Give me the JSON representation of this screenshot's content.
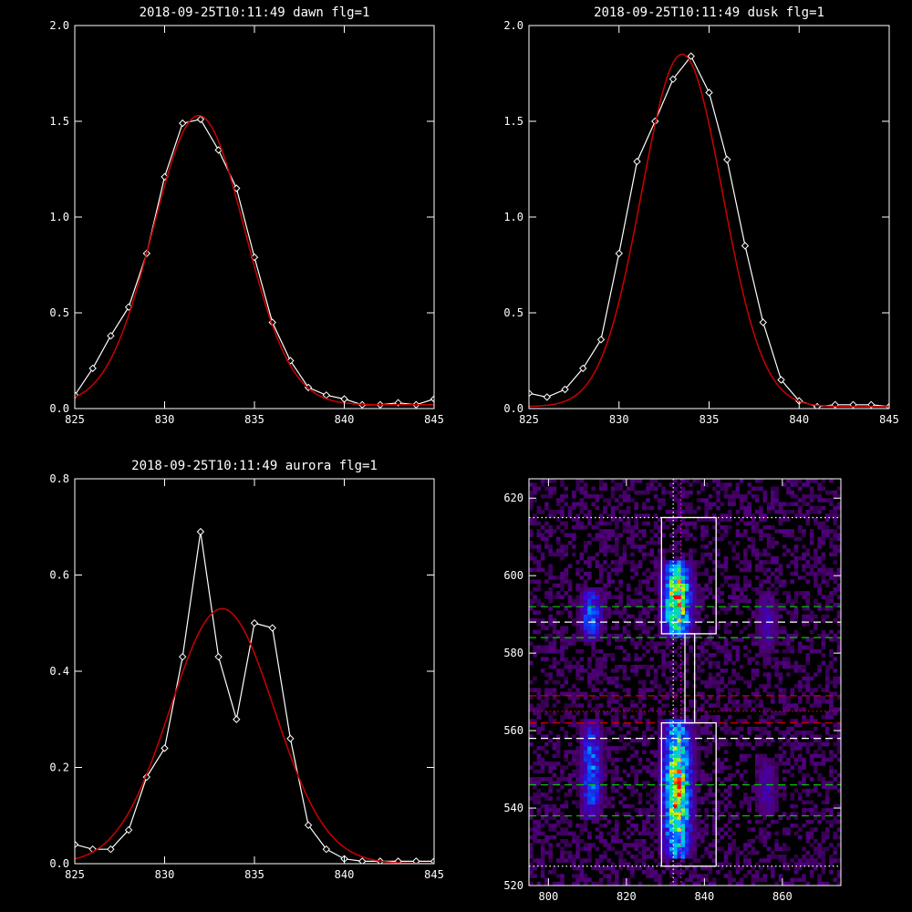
{
  "chart_data": [
    {
      "type": "line",
      "title": "2018-09-25T10:11:49 dawn flg=1",
      "xlim": [
        825,
        845
      ],
      "ylim": [
        0,
        2.0
      ],
      "xticks": [
        825,
        830,
        835,
        840,
        845
      ],
      "yticks": [
        "0.0",
        "0.5",
        "1.0",
        "1.5",
        "2.0"
      ],
      "grid": false,
      "series": [
        {
          "color": "#ffffff",
          "marker": "diamond",
          "x": [
            825,
            826,
            827,
            828,
            829,
            830,
            831,
            832,
            833,
            834,
            835,
            836,
            837,
            838,
            839,
            840,
            841,
            842,
            843,
            844,
            845
          ],
          "y": [
            0.07,
            0.21,
            0.38,
            0.53,
            0.81,
            1.21,
            1.49,
            1.51,
            1.35,
            1.15,
            0.79,
            0.45,
            0.25,
            0.11,
            0.07,
            0.05,
            0.02,
            0.02,
            0.03,
            0.02,
            0.05
          ]
        },
        {
          "color": "#cc0000",
          "fit": {
            "amplitude": 1.51,
            "center": 831.9,
            "sigma": 2.55,
            "offset": 0.02
          }
        }
      ]
    },
    {
      "type": "line",
      "title": "2018-09-25T10:11:49 dusk flg=1",
      "xlim": [
        825,
        845
      ],
      "ylim": [
        0,
        2.0
      ],
      "xticks": [
        825,
        830,
        835,
        840,
        845
      ],
      "yticks": [
        "0.0",
        "0.5",
        "1.0",
        "1.5",
        "2.0"
      ],
      "grid": false,
      "series": [
        {
          "color": "#ffffff",
          "marker": "diamond",
          "x": [
            825,
            826,
            827,
            828,
            829,
            830,
            831,
            832,
            833,
            834,
            835,
            836,
            837,
            838,
            839,
            840,
            841,
            842,
            843,
            844,
            845
          ],
          "y": [
            0.08,
            0.06,
            0.1,
            0.21,
            0.36,
            0.81,
            1.29,
            1.5,
            1.72,
            1.84,
            1.65,
            1.3,
            0.85,
            0.45,
            0.15,
            0.04,
            0.01,
            0.02,
            0.02,
            0.02,
            0.01
          ]
        },
        {
          "color": "#cc0000",
          "fit": {
            "amplitude": 1.84,
            "center": 833.5,
            "sigma": 2.25,
            "offset": 0.01
          }
        }
      ]
    },
    {
      "type": "line",
      "title": "2018-09-25T10:11:49 aurora flg=1",
      "xlim": [
        825,
        845
      ],
      "ylim": [
        0,
        0.8
      ],
      "xticks": [
        825,
        830,
        835,
        840,
        845
      ],
      "yticks": [
        "0.0",
        "0.2",
        "0.4",
        "0.6",
        "0.8"
      ],
      "grid": false,
      "series": [
        {
          "color": "#ffffff",
          "marker": "diamond",
          "x": [
            825,
            826,
            827,
            828,
            829,
            830,
            831,
            832,
            833,
            834,
            835,
            836,
            837,
            838,
            839,
            840,
            841,
            842,
            843,
            844,
            845
          ],
          "y": [
            0.04,
            0.03,
            0.03,
            0.07,
            0.18,
            0.24,
            0.43,
            0.69,
            0.43,
            0.3,
            0.5,
            0.49,
            0.26,
            0.08,
            0.03,
            0.01,
            0.005,
            0.005,
            0.005,
            0.005,
            0.005
          ]
        },
        {
          "color": "#cc0000",
          "fit": {
            "amplitude": 0.53,
            "center": 833.2,
            "sigma": 2.9,
            "offset": 0.0
          }
        }
      ]
    },
    {
      "type": "heatmap",
      "xlim": [
        795,
        875
      ],
      "ylim": [
        520,
        625
      ],
      "xticks": [
        800,
        820,
        840,
        860
      ],
      "yticks": [
        520,
        540,
        560,
        580,
        600,
        620
      ],
      "colormap": "rainbow",
      "bright_columns": [
        {
          "center": 811,
          "half_width": 3,
          "y_ranges": [
            [
              583,
              596
            ],
            [
              537,
              562
            ]
          ],
          "peak": 0.55
        },
        {
          "center": 833,
          "half_width": 4,
          "y_ranges": [
            [
              584,
              603
            ],
            [
              527,
              562
            ]
          ],
          "peak": 1.0
        },
        {
          "center": 856,
          "half_width": 3,
          "y_ranges": [
            [
              580,
              595
            ],
            [
              538,
              552
            ]
          ],
          "peak": 0.3
        }
      ],
      "boxes": [
        {
          "x": [
            829,
            843
          ],
          "y": [
            585,
            615
          ]
        },
        {
          "x": [
            835,
            837.5
          ],
          "y": [
            562,
            585
          ]
        },
        {
          "x": [
            829,
            843
          ],
          "y": [
            525,
            562
          ]
        }
      ],
      "vertical_lines": [
        {
          "x": 832,
          "color": "#ffffff",
          "style": "dotted"
        },
        {
          "x": 834,
          "color": "#ff00ff",
          "style": "dotted"
        }
      ],
      "horizontal_lines": [
        {
          "y": 615,
          "color": "#ffffff",
          "style": "dotted"
        },
        {
          "y": 592,
          "color": "#00cc00",
          "style": "dashed"
        },
        {
          "y": 588,
          "color": "#ffffff",
          "style": "dashed"
        },
        {
          "y": 584,
          "color": "#00cc00",
          "style": "dashed"
        },
        {
          "y": 569,
          "color": "#cc0000",
          "style": "dashed"
        },
        {
          "y": 565,
          "color": "#cc0000",
          "style": "dotted"
        },
        {
          "y": 562,
          "color": "#cc0000",
          "style": "dashed"
        },
        {
          "y": 558,
          "color": "#ffffff",
          "style": "dashed"
        },
        {
          "y": 546,
          "color": "#00cc00",
          "style": "dashed"
        },
        {
          "y": 538,
          "color": "#00cc00",
          "style": "dashed"
        },
        {
          "y": 525,
          "color": "#ffffff",
          "style": "dotted"
        }
      ]
    }
  ]
}
